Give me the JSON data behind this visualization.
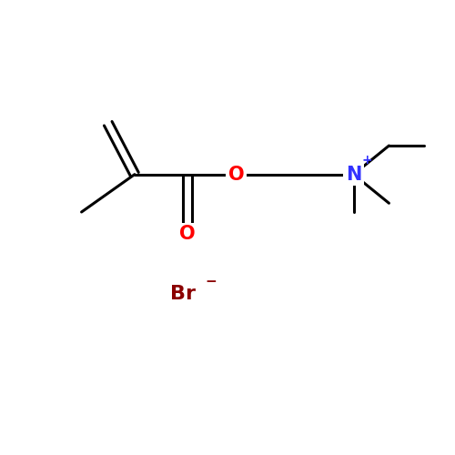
{
  "background_color": "#ffffff",
  "bond_color": "#000000",
  "bond_width": 2.2,
  "O_color": "#ff0000",
  "N_color": "#3333ff",
  "Br_color": "#8b0000",
  "figsize": [
    5.0,
    5.0
  ],
  "dpi": 100,
  "font_size": 14,
  "Br_label": "Br",
  "Br_charge": "−",
  "N_label": "N",
  "N_charge": "+",
  "O_ester_label": "O",
  "O_carbonyl_label": "O"
}
